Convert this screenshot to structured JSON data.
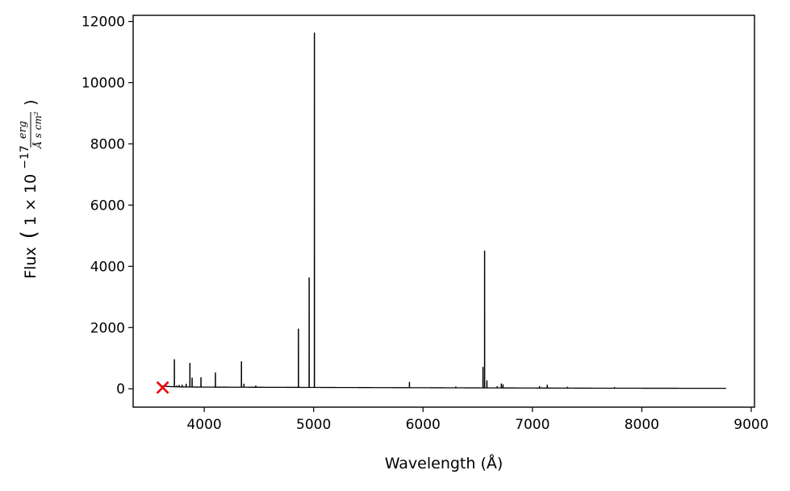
{
  "chart_data": {
    "type": "line",
    "xlabel": "Wavelength (Å)",
    "ylabel": {
      "prefix": "Flux",
      "factor": "1 × 10",
      "exponent": "−17",
      "unit_numerator": "erg",
      "unit_denominator": "Å s cm²"
    },
    "xlim": [
      3350,
      9030
    ],
    "ylim": [
      -600,
      12200
    ],
    "x_ticks": [
      4000,
      5000,
      6000,
      7000,
      8000,
      9000
    ],
    "y_ticks": [
      0,
      2000,
      4000,
      6000,
      8000,
      10000,
      12000
    ],
    "grid": false,
    "series": [
      {
        "color": "#000000",
        "spectrum_range": [
          3600,
          8770
        ],
        "continuum": [
          [
            3600,
            90
          ],
          [
            3700,
            70
          ],
          [
            3800,
            60
          ],
          [
            4000,
            55
          ],
          [
            4500,
            50
          ],
          [
            5000,
            45
          ],
          [
            5500,
            40
          ],
          [
            6000,
            35
          ],
          [
            6500,
            30
          ],
          [
            7000,
            25
          ],
          [
            7500,
            20
          ],
          [
            8000,
            18
          ],
          [
            8770,
            15
          ]
        ],
        "emission_lines": [
          [
            3727,
            950
          ],
          [
            3750,
            90
          ],
          [
            3771,
            110
          ],
          [
            3798,
            120
          ],
          [
            3835,
            150
          ],
          [
            3869,
            830
          ],
          [
            3889,
            350
          ],
          [
            3970,
            360
          ],
          [
            4102,
            520
          ],
          [
            4340,
            880
          ],
          [
            4363,
            150
          ],
          [
            4471,
            90
          ],
          [
            4861,
            1950
          ],
          [
            4959,
            3620
          ],
          [
            5007,
            11620
          ],
          [
            5876,
            210
          ],
          [
            6300,
            60
          ],
          [
            6548,
            700
          ],
          [
            6563,
            4500
          ],
          [
            6584,
            260
          ],
          [
            6678,
            70
          ],
          [
            6716,
            160
          ],
          [
            6731,
            130
          ],
          [
            7065,
            70
          ],
          [
            7136,
            120
          ],
          [
            7320,
            50
          ],
          [
            7751,
            40
          ]
        ]
      }
    ],
    "marker": {
      "symbol": "x",
      "color": "#e8000b",
      "x": 3620,
      "y": 40
    }
  }
}
